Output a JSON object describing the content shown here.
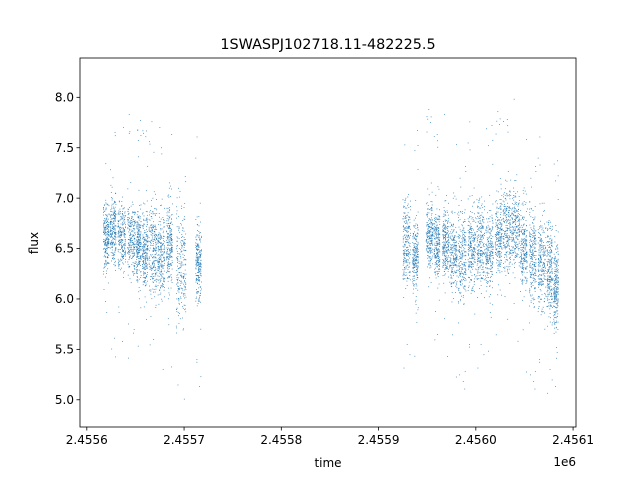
{
  "chart_data": {
    "type": "scatter",
    "title": "1SWASPJ102718.11-482225.5",
    "xlabel": "time",
    "ylabel": "flux",
    "x_offset_label": "1e6",
    "xlim": [
      2.455593,
      2.456103
    ],
    "ylim": [
      4.73,
      8.39
    ],
    "x_ticks": [
      2.4556,
      2.4557,
      2.4558,
      2.4559,
      2.456,
      2.4561
    ],
    "x_tick_labels": [
      "2.4556",
      "2.4557",
      "2.4558",
      "2.4559",
      "2.4560",
      "2.4561"
    ],
    "y_ticks": [
      5.0,
      5.5,
      6.0,
      6.5,
      7.0,
      7.5,
      8.0
    ],
    "y_tick_labels": [
      "5.0",
      "5.5",
      "6.0",
      "6.5",
      "7.0",
      "7.5",
      "8.0"
    ],
    "grid": false,
    "legend": "none",
    "marker_color": "#1f77b4",
    "series": [
      {
        "segments": [
          {
            "x_start": 2.455617,
            "x_end": 2.455623,
            "center": 6.62,
            "spread": 0.22
          },
          {
            "x_start": 2.455624,
            "x_end": 2.45563,
            "center": 6.68,
            "spread": 0.25
          },
          {
            "x_start": 2.455632,
            "x_end": 2.45564,
            "center": 6.62,
            "spread": 0.25
          },
          {
            "x_start": 2.455642,
            "x_end": 2.45565,
            "center": 6.6,
            "spread": 0.25
          },
          {
            "x_start": 2.455651,
            "x_end": 2.455656,
            "center": 6.55,
            "spread": 0.26
          },
          {
            "x_start": 2.455657,
            "x_end": 2.455663,
            "center": 6.48,
            "spread": 0.28
          },
          {
            "x_start": 2.455664,
            "x_end": 2.455672,
            "center": 6.5,
            "spread": 0.32
          },
          {
            "x_start": 2.455673,
            "x_end": 2.45568,
            "center": 6.42,
            "spread": 0.3
          },
          {
            "x_start": 2.455682,
            "x_end": 2.455688,
            "center": 6.55,
            "spread": 0.32
          },
          {
            "x_start": 2.455692,
            "x_end": 2.455702,
            "center": 6.3,
            "spread": 0.4
          },
          {
            "x_start": 2.455712,
            "x_end": 2.455718,
            "center": 6.35,
            "spread": 0.25
          },
          {
            "x_start": 2.455925,
            "x_end": 2.455933,
            "center": 6.55,
            "spread": 0.3
          },
          {
            "x_start": 2.455935,
            "x_end": 2.455941,
            "center": 6.45,
            "spread": 0.28
          },
          {
            "x_start": 2.455949,
            "x_end": 2.455956,
            "center": 6.62,
            "spread": 0.25
          },
          {
            "x_start": 2.455957,
            "x_end": 2.455963,
            "center": 6.55,
            "spread": 0.22
          },
          {
            "x_start": 2.455966,
            "x_end": 2.455972,
            "center": 6.55,
            "spread": 0.25
          },
          {
            "x_start": 2.455973,
            "x_end": 2.455981,
            "center": 6.45,
            "spread": 0.28
          },
          {
            "x_start": 2.455982,
            "x_end": 2.45599,
            "center": 6.4,
            "spread": 0.3
          },
          {
            "x_start": 2.455992,
            "x_end": 2.456,
            "center": 6.5,
            "spread": 0.28
          },
          {
            "x_start": 2.456001,
            "x_end": 2.456009,
            "center": 6.55,
            "spread": 0.3
          },
          {
            "x_start": 2.45601,
            "x_end": 2.456018,
            "center": 6.5,
            "spread": 0.3
          },
          {
            "x_start": 2.45602,
            "x_end": 2.456027,
            "center": 6.6,
            "spread": 0.28
          },
          {
            "x_start": 2.456028,
            "x_end": 2.456036,
            "center": 6.7,
            "spread": 0.3
          },
          {
            "x_start": 2.456037,
            "x_end": 2.456045,
            "center": 6.7,
            "spread": 0.28
          },
          {
            "x_start": 2.456046,
            "x_end": 2.456053,
            "center": 6.5,
            "spread": 0.3
          },
          {
            "x_start": 2.456055,
            "x_end": 2.456062,
            "center": 6.4,
            "spread": 0.32
          },
          {
            "x_start": 2.456064,
            "x_end": 2.456072,
            "center": 6.35,
            "spread": 0.32
          },
          {
            "x_start": 2.456073,
            "x_end": 2.456079,
            "center": 6.3,
            "spread": 0.32
          },
          {
            "x_start": 2.45608,
            "x_end": 2.456085,
            "center": 6.15,
            "spread": 0.35
          }
        ]
      }
    ]
  }
}
